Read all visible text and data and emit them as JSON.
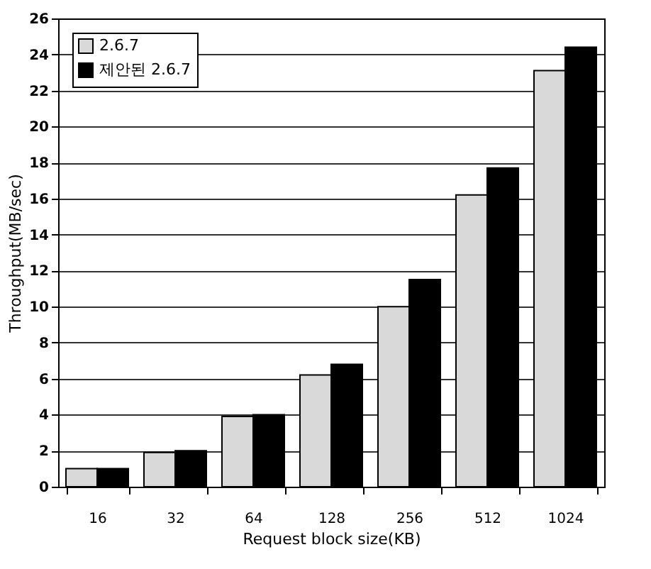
{
  "chart_data": {
    "type": "bar",
    "xlabel": "Request block size(KB)",
    "ylabel": "Throughput(MB/sec)",
    "categories": [
      "16",
      "32",
      "64",
      "128",
      "256",
      "512",
      "1024"
    ],
    "series": [
      {
        "name": "2.6.7",
        "color": "#d9d9d9",
        "values": [
          1.0,
          1.9,
          3.9,
          6.2,
          10.0,
          16.2,
          23.1
        ]
      },
      {
        "name": "제안된 2.6.7",
        "color": "#000000",
        "values": [
          1.0,
          2.0,
          4.0,
          6.8,
          11.5,
          17.7,
          24.4
        ]
      }
    ],
    "ylim": [
      0,
      26
    ],
    "yticks": [
      0,
      2,
      4,
      6,
      8,
      10,
      12,
      14,
      16,
      18,
      20,
      22,
      24,
      26
    ],
    "grid": "y",
    "legend": "top left"
  }
}
